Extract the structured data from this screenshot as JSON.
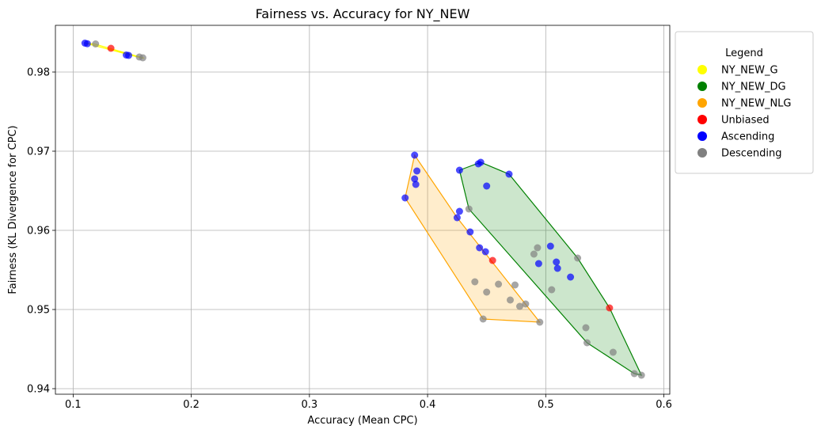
{
  "chart_data": {
    "type": "scatter",
    "title": "Fairness vs. Accuracy for NY_NEW",
    "xlabel": "Accuracy (Mean CPC)",
    "ylabel": "Fairness (KL Divergence for CPC)",
    "xlim": [
      0.085,
      0.605
    ],
    "ylim": [
      0.9393,
      0.9859
    ],
    "xticks": [
      0.1,
      0.2,
      0.3,
      0.4,
      0.5,
      0.6
    ],
    "xtick_labels": [
      "0.1",
      "0.2",
      "0.3",
      "0.4",
      "0.5",
      "0.6"
    ],
    "yticks": [
      0.94,
      0.95,
      0.96,
      0.97,
      0.98
    ],
    "ytick_labels": [
      "0.94",
      "0.95",
      "0.96",
      "0.97",
      "0.98"
    ],
    "grid": true,
    "legend": {
      "title": "Legend",
      "placement": "outside-right-top",
      "entries": [
        {
          "label": "NY_NEW_G",
          "color": "#ffff00"
        },
        {
          "label": "NY_NEW_DG",
          "color": "#008000"
        },
        {
          "label": "NY_NEW_NLG",
          "color": "#ffa500"
        },
        {
          "label": "Unbiased",
          "color": "#ff0000"
        },
        {
          "label": "Ascending",
          "color": "#0000ff"
        },
        {
          "label": "Descending",
          "color": "#808080"
        }
      ]
    },
    "hulls": [
      {
        "group": "NY_NEW_G",
        "stroke": "#ffff00",
        "fill": "#ffff00",
        "fill_opacity": 0.2,
        "points": [
          [
            0.11,
            0.98365
          ],
          [
            0.118,
            0.98355
          ],
          [
            0.16,
            0.98175
          ],
          [
            0.156,
            0.98185
          ]
        ]
      },
      {
        "group": "NY_NEW_NLG",
        "stroke": "#ffa500",
        "fill": "#ffa500",
        "fill_opacity": 0.2,
        "points": [
          [
            0.381,
            0.9641
          ],
          [
            0.389,
            0.9695
          ],
          [
            0.425,
            0.9616
          ],
          [
            0.495,
            0.9484
          ],
          [
            0.447,
            0.9488
          ]
        ]
      },
      {
        "group": "NY_NEW_DG",
        "stroke": "#008000",
        "fill": "#008000",
        "fill_opacity": 0.2,
        "points": [
          [
            0.427,
            0.9676
          ],
          [
            0.445,
            0.9686
          ],
          [
            0.469,
            0.9671
          ],
          [
            0.527,
            0.9565
          ],
          [
            0.554,
            0.9502
          ],
          [
            0.581,
            0.9417
          ],
          [
            0.575,
            0.9419
          ],
          [
            0.535,
            0.9458
          ],
          [
            0.435,
            0.9627
          ]
        ]
      }
    ],
    "series": [
      {
        "name": "Descending",
        "color": "#808080",
        "points": [
          [
            0.119,
            0.98355
          ],
          [
            0.156,
            0.9819
          ],
          [
            0.159,
            0.9818
          ],
          [
            0.435,
            0.9627
          ],
          [
            0.44,
            0.9535
          ],
          [
            0.45,
            0.9522
          ],
          [
            0.46,
            0.9532
          ],
          [
            0.47,
            0.9512
          ],
          [
            0.474,
            0.9531
          ],
          [
            0.478,
            0.9504
          ],
          [
            0.483,
            0.9507
          ],
          [
            0.447,
            0.9488
          ],
          [
            0.495,
            0.9484
          ],
          [
            0.49,
            0.957
          ],
          [
            0.493,
            0.9578
          ],
          [
            0.505,
            0.9525
          ],
          [
            0.527,
            0.9565
          ],
          [
            0.534,
            0.9477
          ],
          [
            0.535,
            0.9458
          ],
          [
            0.557,
            0.9446
          ],
          [
            0.575,
            0.9419
          ],
          [
            0.581,
            0.9417
          ]
        ]
      },
      {
        "name": "Ascending",
        "color": "#0000ff",
        "points": [
          [
            0.11,
            0.98365
          ],
          [
            0.112,
            0.98358
          ],
          [
            0.145,
            0.98215
          ],
          [
            0.147,
            0.9821
          ],
          [
            0.381,
            0.9641
          ],
          [
            0.389,
            0.9695
          ],
          [
            0.391,
            0.9675
          ],
          [
            0.389,
            0.9665
          ],
          [
            0.39,
            0.9658
          ],
          [
            0.425,
            0.9616
          ],
          [
            0.427,
            0.9624
          ],
          [
            0.436,
            0.9598
          ],
          [
            0.444,
            0.9578
          ],
          [
            0.449,
            0.9573
          ],
          [
            0.427,
            0.9676
          ],
          [
            0.443,
            0.9684
          ],
          [
            0.445,
            0.9686
          ],
          [
            0.45,
            0.9656
          ],
          [
            0.469,
            0.9671
          ],
          [
            0.494,
            0.9558
          ],
          [
            0.504,
            0.958
          ],
          [
            0.509,
            0.956
          ],
          [
            0.51,
            0.9552
          ],
          [
            0.521,
            0.9541
          ]
        ]
      },
      {
        "name": "Unbiased",
        "color": "#ff0000",
        "points": [
          [
            0.132,
            0.983
          ],
          [
            0.455,
            0.9562
          ],
          [
            0.554,
            0.9502
          ]
        ]
      }
    ]
  }
}
